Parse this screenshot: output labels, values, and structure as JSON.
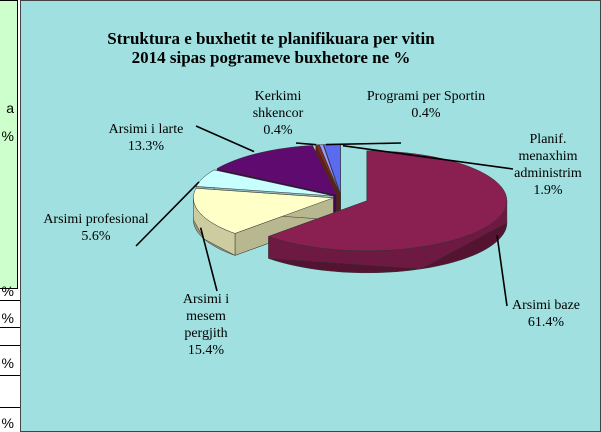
{
  "sheet_cells": [
    "a",
    "%",
    "%",
    "%",
    "%",
    "%"
  ],
  "chart_data": {
    "type": "pie3d",
    "title": [
      "Struktura e buxhetit te planifikuara per vitin",
      "2014 sipas pogrameve buxhetore ne %"
    ],
    "categories": [
      "Arsimi baze",
      "Arsimi i mesem pergjith",
      "Arsimi profesional",
      "Arsimi i larte",
      "Kerkimi shkencor",
      "Programi per Sportin",
      "Planif. menaxhim administrim"
    ],
    "values": [
      61.4,
      15.4,
      5.6,
      13.3,
      0.4,
      0.4,
      1.9
    ],
    "value_labels": [
      "61.4%",
      "15.4%",
      "5.6%",
      "13.3%",
      "0.4%",
      "0.4%",
      "1.9%"
    ],
    "colors": [
      "#8a1f52",
      "#ffffc8",
      "#c8ffff",
      "#5e0a6e",
      "#8a2a1a",
      "#9a9aff",
      "#5a6bef"
    ]
  }
}
